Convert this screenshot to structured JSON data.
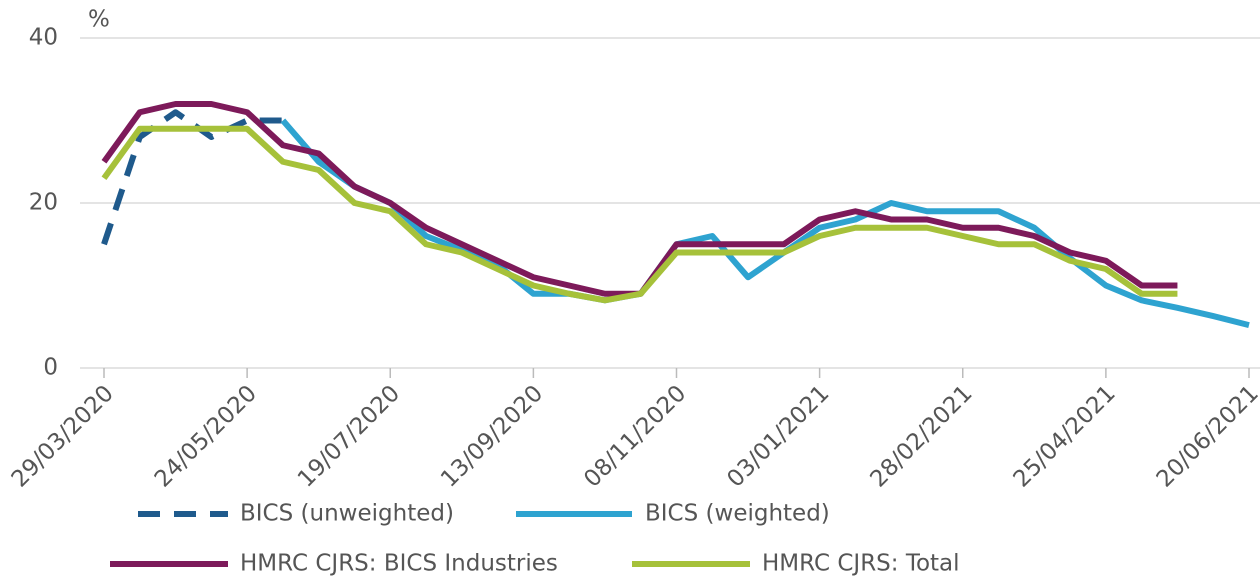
{
  "chart_data": {
    "type": "line",
    "y_label": "%",
    "x": [
      "29/03/2020",
      "12/04/2020",
      "26/04/2020",
      "10/05/2020",
      "24/05/2020",
      "07/06/2020",
      "21/06/2020",
      "05/07/2020",
      "19/07/2020",
      "02/08/2020",
      "16/08/2020",
      "30/08/2020",
      "13/09/2020",
      "27/09/2020",
      "11/10/2020",
      "25/10/2020",
      "08/11/2020",
      "22/11/2020",
      "06/12/2020",
      "20/12/2020",
      "03/01/2021",
      "17/01/2021",
      "31/01/2021",
      "14/02/2021",
      "28/02/2021",
      "14/03/2021",
      "28/03/2021",
      "11/04/2021",
      "25/04/2021",
      "09/05/2021",
      "23/05/2021",
      "06/06/2021",
      "20/06/2021"
    ],
    "xlim": [
      "29/03/2020",
      "20/06/2021"
    ],
    "xticks": [
      "29/03/2020",
      "24/05/2020",
      "19/07/2020",
      "13/09/2020",
      "08/11/2020",
      "03/01/2021",
      "28/02/2021",
      "25/04/2021",
      "20/06/2021"
    ],
    "ylim": [
      0,
      40
    ],
    "yticks": [
      0,
      20,
      40
    ],
    "grid": true,
    "legend": "bottom",
    "series": [
      {
        "name": "BICS (unweighted)",
        "color": "#1f5a8c",
        "dashed": true,
        "values": [
          15,
          28,
          31,
          28,
          30,
          30,
          null,
          null,
          null,
          null,
          null,
          null,
          null,
          null,
          null,
          null,
          null,
          null,
          null,
          null,
          null,
          null,
          null,
          null,
          null,
          null,
          null,
          null,
          null,
          null,
          null,
          null,
          null
        ]
      },
      {
        "name": "BICS (weighted)",
        "color": "#2ea3d0",
        "values": [
          null,
          null,
          null,
          null,
          null,
          30,
          25,
          22,
          20,
          16,
          14.3,
          12.5,
          9,
          9,
          8.2,
          9,
          15,
          16,
          11,
          14,
          17,
          18,
          20,
          19,
          19,
          19,
          17,
          13.3,
          10,
          8.2,
          7.3,
          6.3,
          5.2
        ]
      },
      {
        "name": "HMRC CJRS: BICS Industries",
        "color": "#7d1a5a",
        "values": [
          25,
          31,
          32,
          32,
          31,
          27,
          26,
          22,
          20,
          17,
          15,
          13,
          11,
          10,
          9,
          9,
          15,
          15,
          15,
          15,
          18,
          19,
          18,
          18,
          17,
          17,
          16,
          14,
          13,
          10,
          10,
          null,
          null
        ]
      },
      {
        "name": "HMRC CJRS: Total",
        "color": "#a6c13a",
        "values": [
          23,
          29,
          29,
          29,
          29,
          25,
          24,
          20,
          19,
          15,
          14,
          12,
          10,
          9,
          8.2,
          9,
          14,
          14,
          14,
          14,
          16,
          17,
          17,
          17,
          16,
          15,
          15,
          13,
          12,
          9,
          9,
          null,
          null
        ]
      }
    ]
  }
}
